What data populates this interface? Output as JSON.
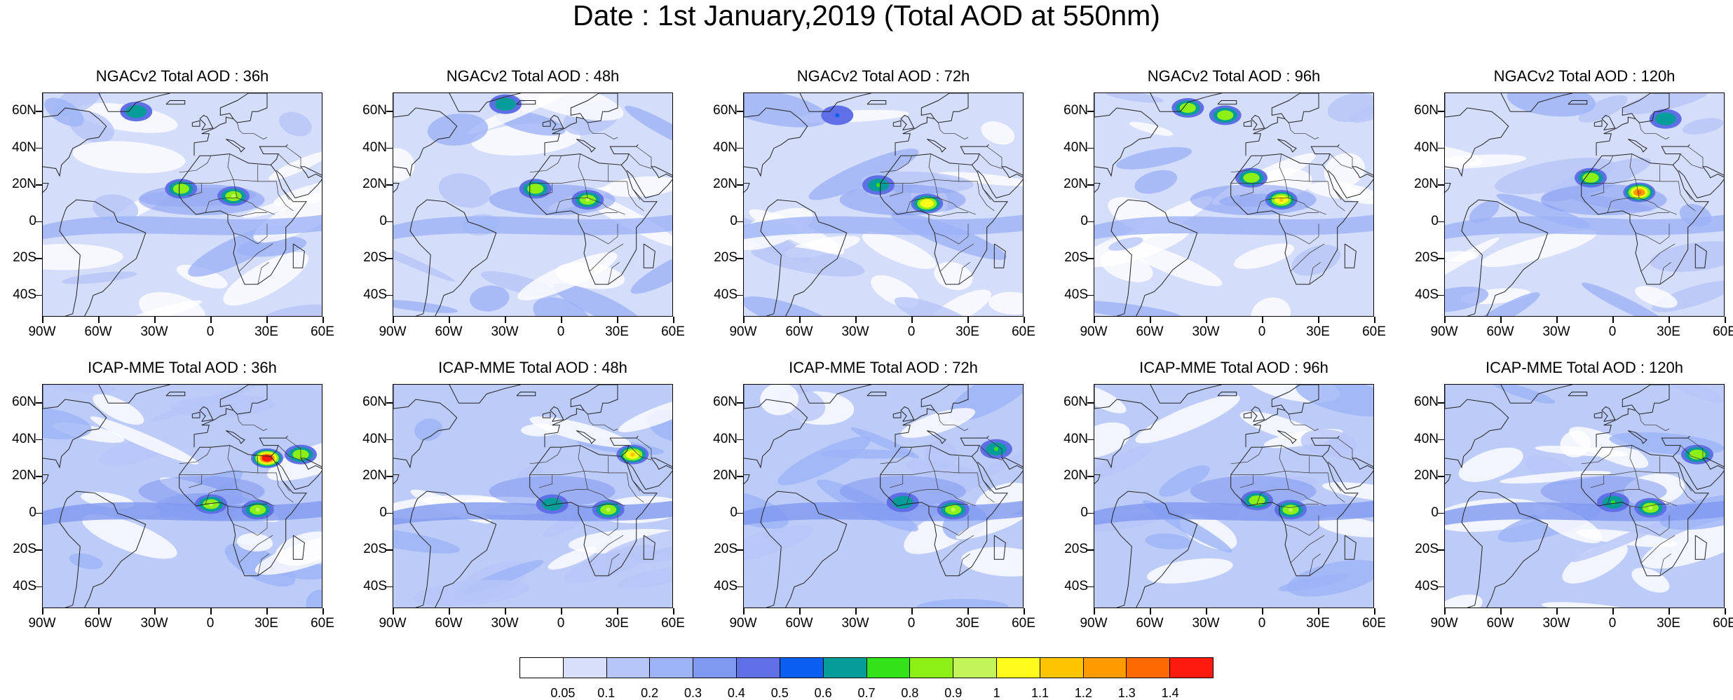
{
  "title": "Date : 1st January,2019 (Total AOD at 550nm)",
  "panels": [
    {
      "title": "NGACv2 Total AOD : 36h"
    },
    {
      "title": "NGACv2 Total AOD : 48h"
    },
    {
      "title": "NGACv2 Total AOD : 72h"
    },
    {
      "title": "NGACv2 Total AOD : 96h"
    },
    {
      "title": "NGACv2 Total AOD : 120h"
    },
    {
      "title": "ICAP-MME Total AOD : 36h"
    },
    {
      "title": "ICAP-MME Total AOD : 48h"
    },
    {
      "title": "ICAP-MME Total AOD : 72h"
    },
    {
      "title": "ICAP-MME Total AOD : 96h"
    },
    {
      "title": "ICAP-MME Total AOD : 120h"
    }
  ],
  "axes": {
    "lat_labels": [
      "60N",
      "40N",
      "20N",
      "0",
      "20S",
      "40S"
    ],
    "lat_values": [
      60,
      40,
      20,
      0,
      -20,
      -40
    ],
    "lon_labels": [
      "90W",
      "60W",
      "30W",
      "0",
      "30E",
      "60E"
    ],
    "lon_values": [
      -90,
      -60,
      -30,
      0,
      30,
      60
    ],
    "lat_range": [
      -52,
      70
    ],
    "lon_range": [
      -90,
      60
    ]
  },
  "colorbar": {
    "colors": [
      "#ffffff",
      "#d7dffb",
      "#b7c6f8",
      "#9cb3f6",
      "#7f98f0",
      "#5f6fe6",
      "#0a5ff0",
      "#069c9a",
      "#34e21a",
      "#8cf016",
      "#c3f55a",
      "#fffc1c",
      "#ffc400",
      "#ff9a00",
      "#ff6a00",
      "#ff1a10"
    ],
    "labels": [
      "0.05",
      "0.1",
      "0.2",
      "0.3",
      "0.4",
      "0.5",
      "0.6",
      "0.7",
      "0.8",
      "0.9",
      "1",
      "1.1",
      "1.2",
      "1.3",
      "1.4"
    ]
  },
  "chart_data": {
    "type": "heatmap",
    "variable": "Total AOD at 550nm",
    "date": "1st January,2019",
    "models": [
      "NGACv2",
      "ICAP-MME"
    ],
    "forecast_hours": [
      "36h",
      "48h",
      "72h",
      "96h",
      "120h"
    ],
    "levels": [
      0.05,
      0.1,
      0.2,
      0.3,
      0.4,
      0.5,
      0.6,
      0.7,
      0.8,
      0.9,
      1,
      1.1,
      1.2,
      1.3,
      1.4
    ],
    "hotspots": [
      [
        {
          "lon": 12,
          "lat": 14,
          "aod": 0.9
        },
        {
          "lon": -16,
          "lat": 18,
          "aod": 0.8
        },
        {
          "lon": -40,
          "lat": 60,
          "aod": 0.6
        }
      ],
      [
        {
          "lon": 14,
          "lat": 12,
          "aod": 0.9
        },
        {
          "lon": -14,
          "lat": 18,
          "aod": 0.8
        },
        {
          "lon": -30,
          "lat": 64,
          "aod": 0.6
        }
      ],
      [
        {
          "lon": 8,
          "lat": 10,
          "aod": 1.0
        },
        {
          "lon": -18,
          "lat": 20,
          "aod": 0.7
        },
        {
          "lon": -40,
          "lat": 58,
          "aod": 0.5
        }
      ],
      [
        {
          "lon": 10,
          "lat": 12,
          "aod": 1.1
        },
        {
          "lon": -6,
          "lat": 24,
          "aod": 0.8
        },
        {
          "lon": -40,
          "lat": 62,
          "aod": 0.8
        },
        {
          "lon": -20,
          "lat": 58,
          "aod": 0.8
        }
      ],
      [
        {
          "lon": 14,
          "lat": 16,
          "aod": 1.3
        },
        {
          "lon": -12,
          "lat": 24,
          "aod": 0.8
        },
        {
          "lon": 28,
          "lat": 56,
          "aod": 0.6
        }
      ],
      [
        {
          "lon": 30,
          "lat": 30,
          "aod": 1.4
        },
        {
          "lon": 48,
          "lat": 32,
          "aod": 0.8
        },
        {
          "lon": 0,
          "lat": 5,
          "aod": 0.9
        },
        {
          "lon": 25,
          "lat": 2,
          "aod": 0.9
        }
      ],
      [
        {
          "lon": 38,
          "lat": 32,
          "aod": 1.1
        },
        {
          "lon": 25,
          "lat": 2,
          "aod": 0.9
        },
        {
          "lon": -5,
          "lat": 5,
          "aod": 0.6
        }
      ],
      [
        {
          "lon": 22,
          "lat": 2,
          "aod": 0.9
        },
        {
          "lon": 45,
          "lat": 35,
          "aod": 0.7
        },
        {
          "lon": -5,
          "lat": 6,
          "aod": 0.6
        }
      ],
      [
        {
          "lon": 15,
          "lat": 2,
          "aod": 0.9
        },
        {
          "lon": -3,
          "lat": 7,
          "aod": 0.8
        }
      ],
      [
        {
          "lon": 20,
          "lat": 3,
          "aod": 0.9
        },
        {
          "lon": 45,
          "lat": 32,
          "aod": 0.8
        },
        {
          "lon": 0,
          "lat": 6,
          "aod": 0.7
        }
      ]
    ]
  }
}
